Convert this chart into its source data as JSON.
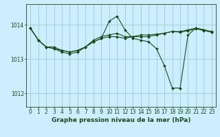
{
  "background_color": "#cceeff",
  "grid_color": "#99cccc",
  "line_color": "#1a4a1a",
  "marker_color": "#1a4a1a",
  "xlabel": "Graphe pression niveau de la mer (hPa)",
  "xlabel_fontsize": 6.5,
  "tick_fontsize": 5.5,
  "xlim": [
    -0.5,
    23.5
  ],
  "ylim": [
    1011.6,
    1014.6
  ],
  "yticks": [
    1012,
    1013,
    1014
  ],
  "xticks": [
    0,
    1,
    2,
    3,
    4,
    5,
    6,
    7,
    8,
    9,
    10,
    11,
    12,
    13,
    14,
    15,
    16,
    17,
    18,
    19,
    20,
    21,
    22,
    23
  ],
  "series": [
    [
      1013.9,
      1013.55,
      1013.35,
      1013.35,
      1013.25,
      1013.2,
      1013.25,
      1013.35,
      1013.5,
      1013.6,
      1013.65,
      1013.65,
      1013.6,
      1013.65,
      1013.65,
      1013.65,
      1013.7,
      1013.75,
      1013.8,
      1013.8,
      1013.85,
      1013.9,
      1013.85,
      1013.8
    ],
    [
      1013.9,
      1013.55,
      1013.35,
      1013.3,
      1013.25,
      1013.2,
      1013.25,
      1013.35,
      1013.55,
      1013.65,
      1013.7,
      1013.75,
      1013.65,
      1013.65,
      1013.7,
      1013.7,
      1013.72,
      1013.75,
      1013.8,
      1013.78,
      1013.82,
      1013.88,
      1013.83,
      1013.78
    ],
    [
      1013.9,
      1013.55,
      1013.35,
      1013.3,
      1013.2,
      1013.15,
      1013.2,
      1013.35,
      1013.5,
      1013.6,
      1014.1,
      1014.25,
      1013.85,
      1013.6,
      1013.55,
      1013.5,
      1013.3,
      1012.8,
      1012.15,
      1012.15,
      1013.7,
      1013.9,
      1013.85,
      1013.78
    ]
  ]
}
